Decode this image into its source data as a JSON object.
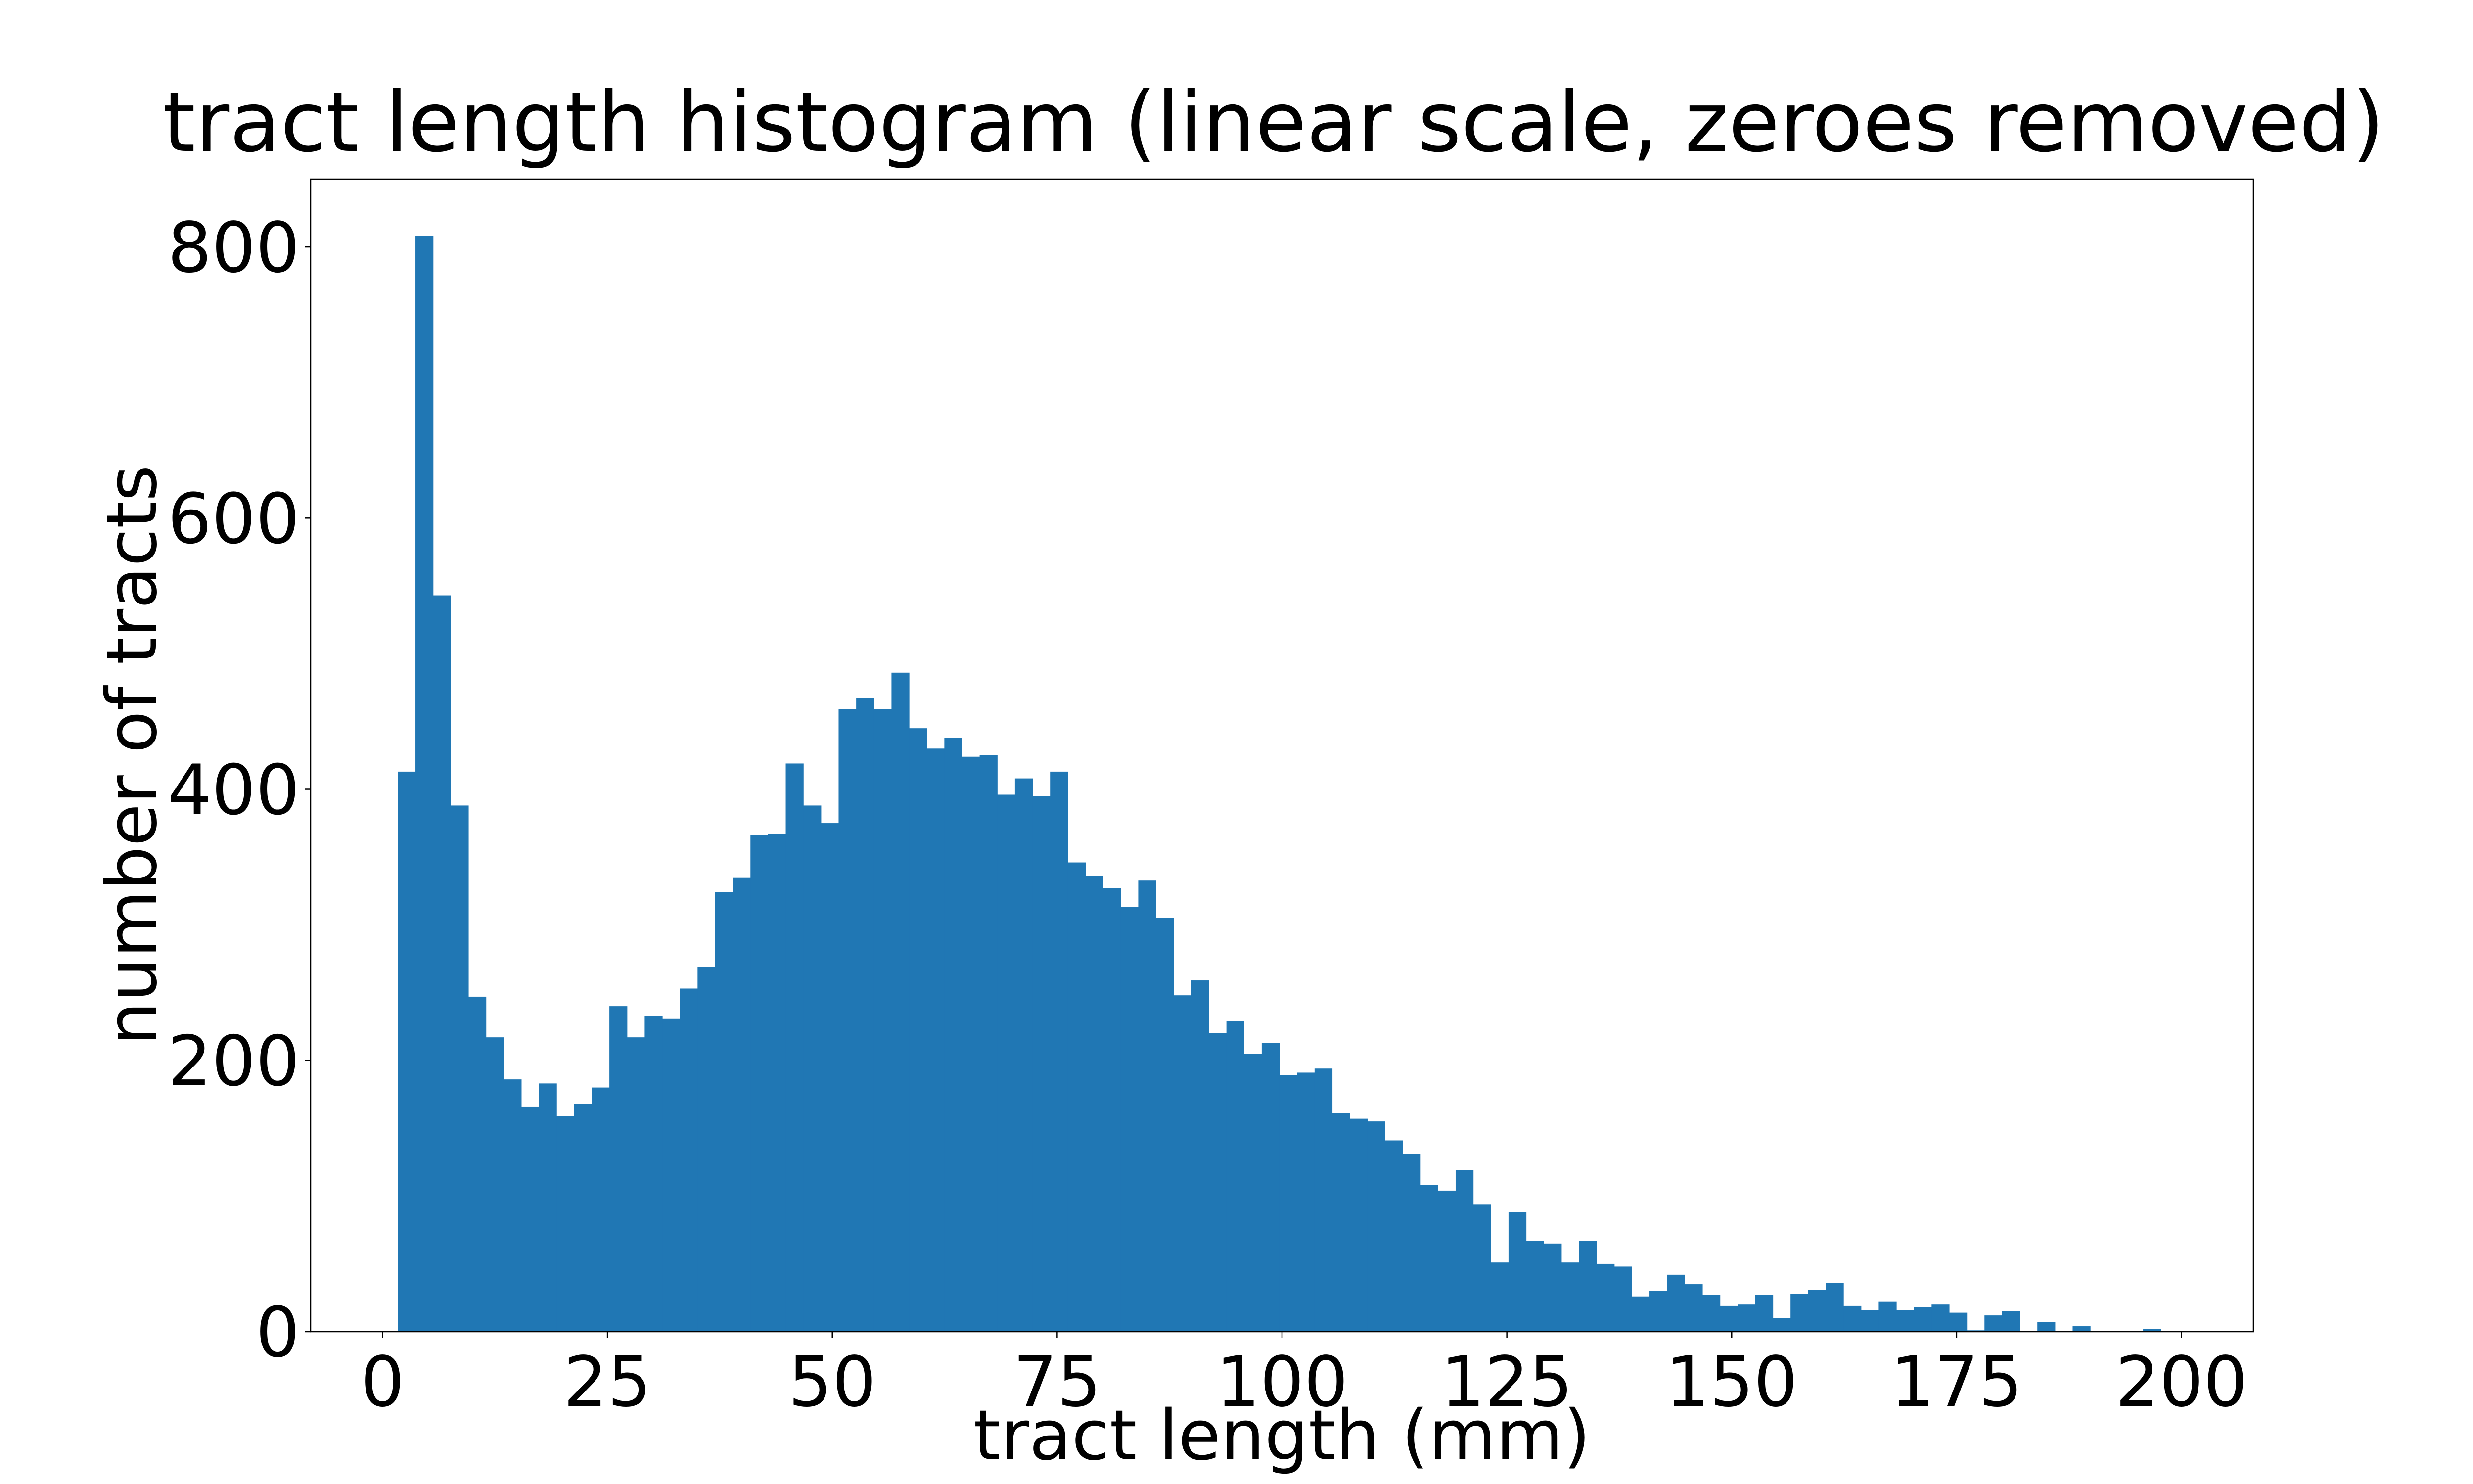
{
  "chart_data": {
    "type": "bar",
    "title": "tract length histogram (linear scale, zeroes removed)",
    "xlabel": "tract length (mm)",
    "ylabel": "number of tracts",
    "xlim": [
      -8,
      208
    ],
    "ylim": [
      0,
      850
    ],
    "xticks": [
      0,
      25,
      50,
      75,
      100,
      125,
      150,
      175,
      200
    ],
    "xtick_labels": [
      "0",
      "25",
      "50",
      "75",
      "100",
      "125",
      "150",
      "175",
      "200"
    ],
    "yticks": [
      0,
      200,
      400,
      600,
      800
    ],
    "ytick_labels": [
      "0",
      "200",
      "400",
      "600",
      "800"
    ],
    "bin_start": 1.7,
    "bin_width": 1.96,
    "counts": [
      413,
      808,
      543,
      388,
      247,
      217,
      186,
      166,
      183,
      159,
      168,
      180,
      240,
      217,
      233,
      231,
      253,
      269,
      324,
      335,
      366,
      367,
      419,
      388,
      375,
      459,
      467,
      459,
      486,
      445,
      430,
      438,
      424,
      425,
      396,
      408,
      395,
      413,
      346,
      336,
      327,
      313,
      333,
      305,
      248,
      259,
      220,
      229,
      205,
      213,
      189,
      191,
      194,
      161,
      157,
      155,
      141,
      131,
      108,
      104,
      119,
      94,
      51,
      88,
      67,
      65,
      51,
      67,
      50,
      48,
      26,
      30,
      42,
      35,
      27,
      19,
      20,
      27,
      10,
      28,
      31,
      36,
      19,
      16,
      22,
      16,
      18,
      20,
      14,
      1,
      12,
      15,
      0,
      7,
      0,
      4,
      0,
      0,
      0,
      2
    ],
    "grid": false,
    "color": "#2077b4"
  }
}
